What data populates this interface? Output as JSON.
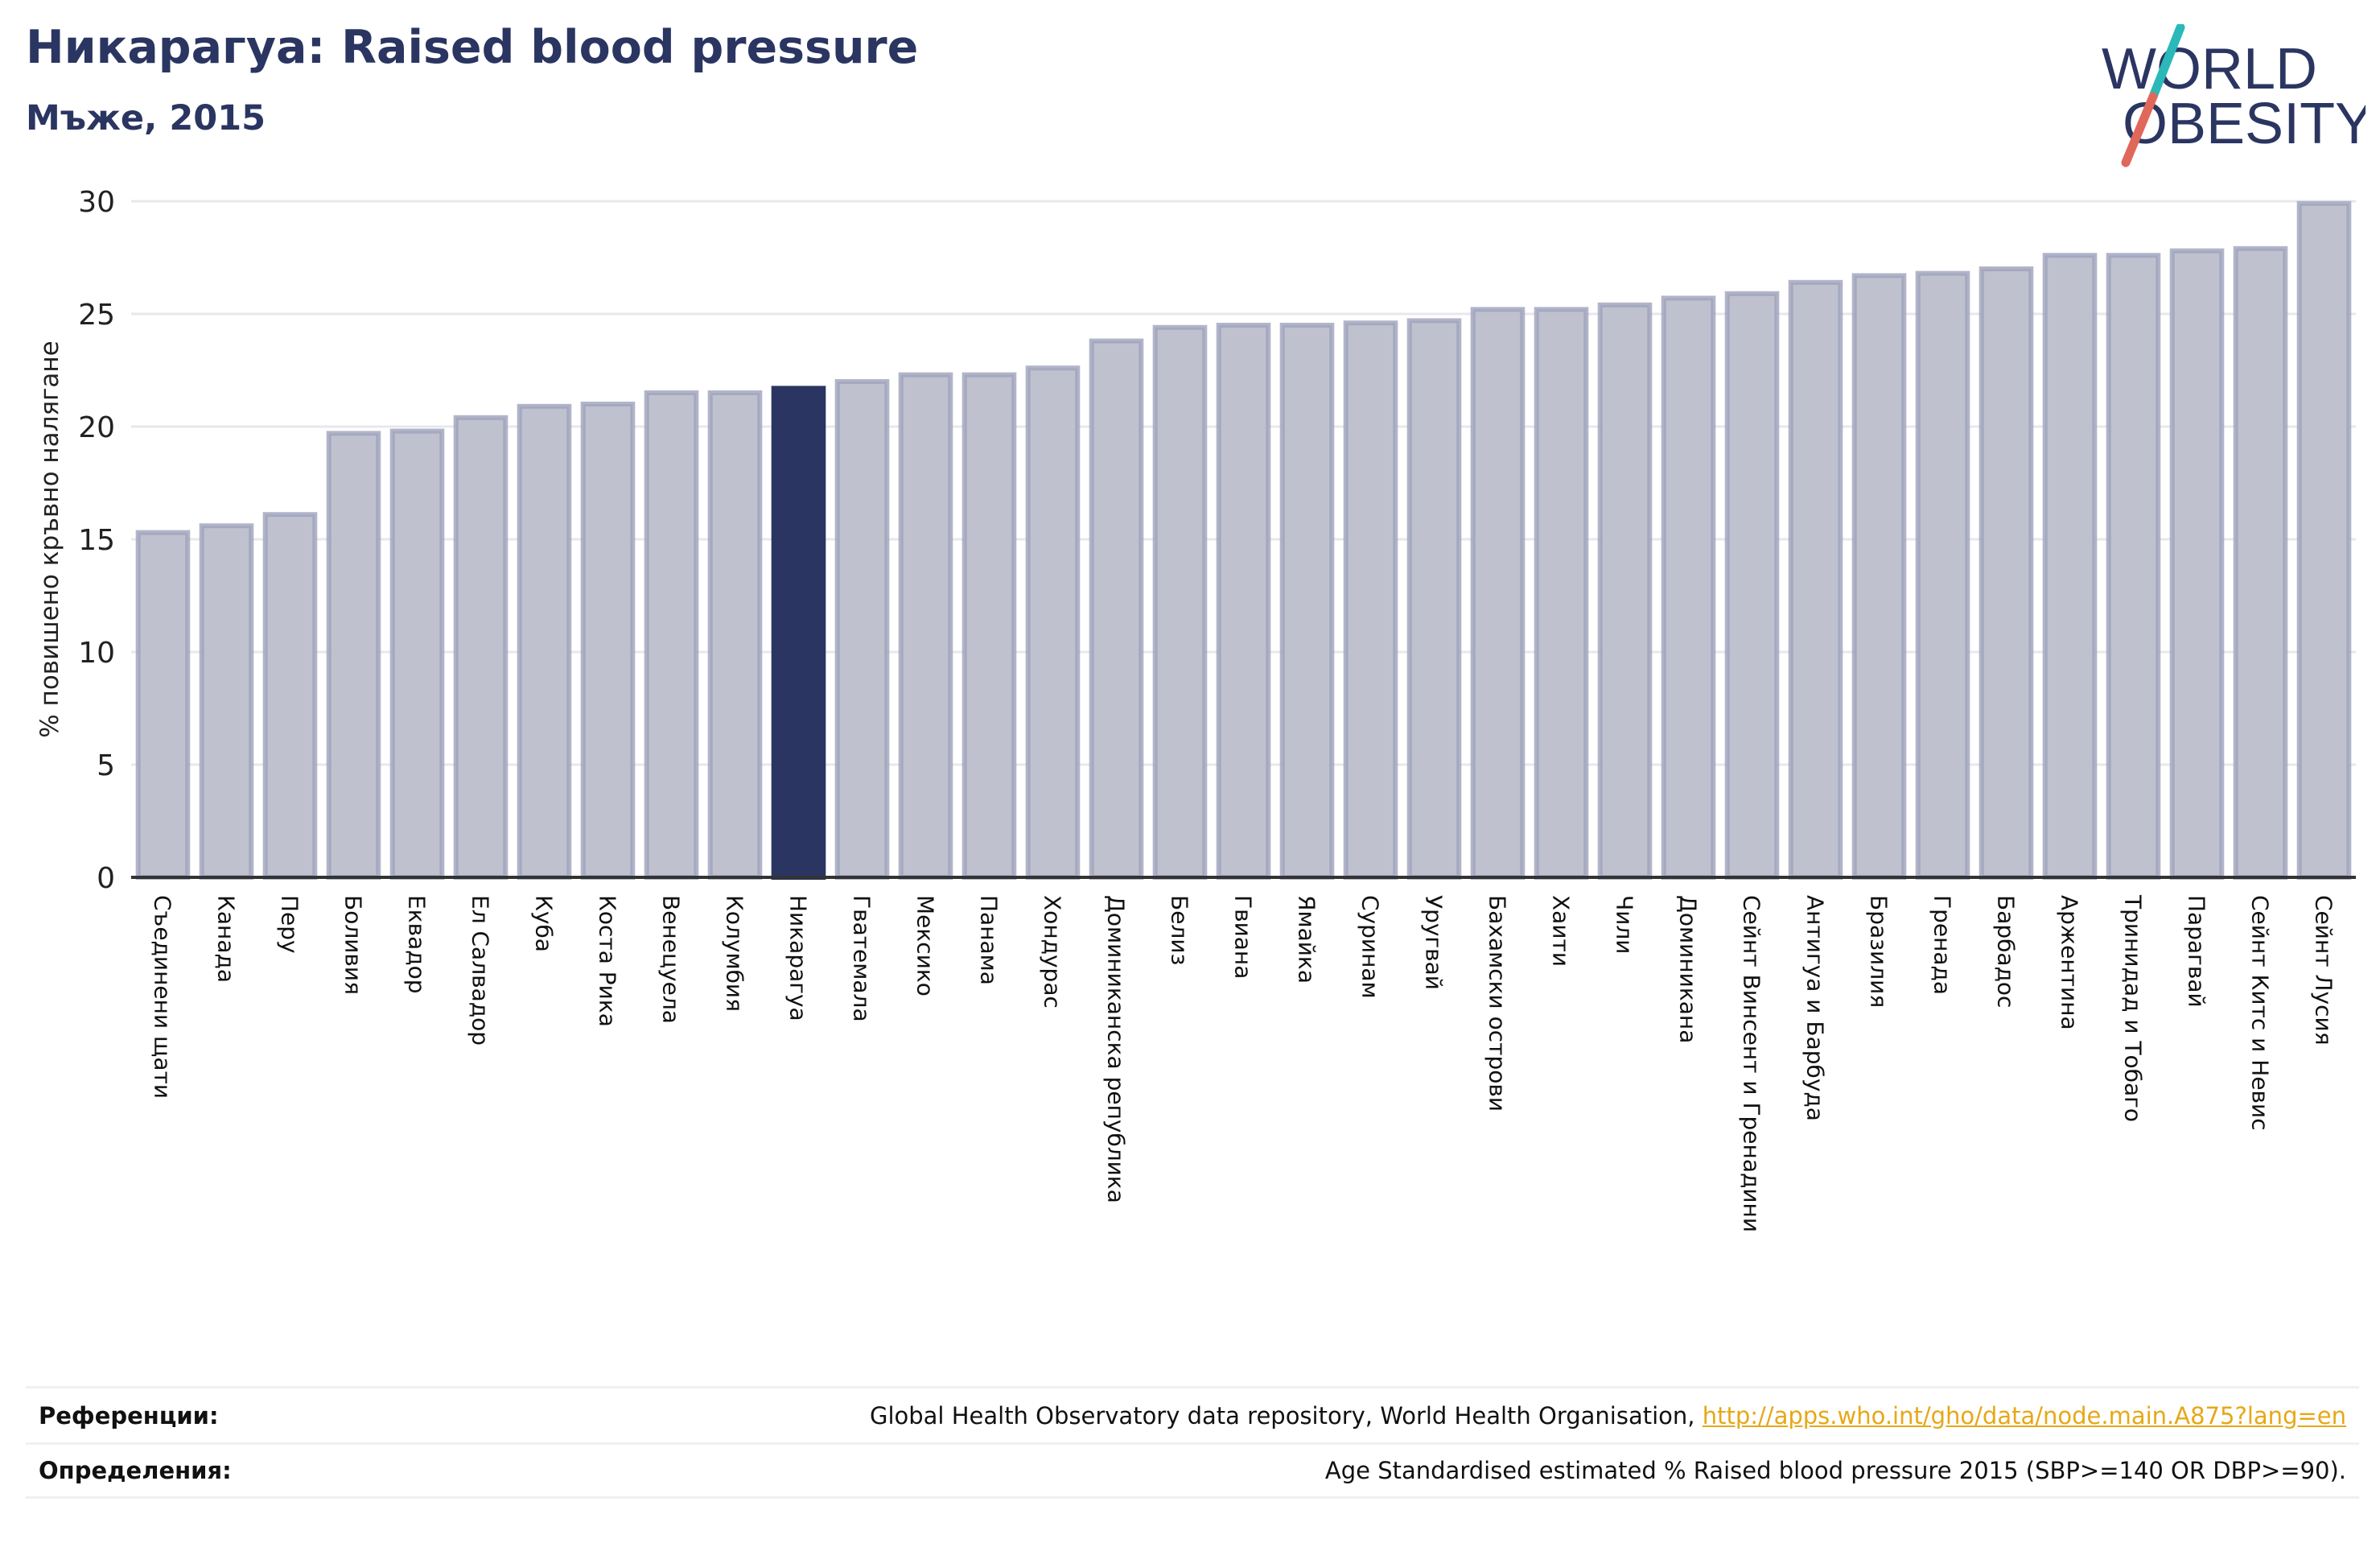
{
  "header": {
    "title": "Никарагуа: Raised blood pressure",
    "subtitle": "Мъже, 2015"
  },
  "logo": {
    "line1": "WORLD",
    "line2": "OBESITY",
    "colors": {
      "text": "#2a3561",
      "slash_top": "#2ab8b8",
      "slash_bottom": "#e0685a"
    }
  },
  "chart_data": {
    "type": "bar",
    "ylabel": "% повишено кръвно налягане",
    "xlabel": "",
    "ylim": [
      0,
      30
    ],
    "yticks": [
      0,
      5,
      10,
      15,
      20,
      25,
      30
    ],
    "grid": true,
    "highlight": "Никарагуа",
    "colors": {
      "bar": "#bfc1cf",
      "bar_edge": "#9fa3bc",
      "highlight": "#2a3561",
      "grid": "#e8e8ec",
      "axis": "#333333"
    },
    "categories": [
      "Съединени щати",
      "Канада",
      "Перу",
      "Боливия",
      "Еквадор",
      "Ел Салвадор",
      "Куба",
      "Коста Рика",
      "Венецуела",
      "Колумбия",
      "Никарагуа",
      "Гватемала",
      "Мексико",
      "Панама",
      "Хондурас",
      "Доминиканска република",
      "Белиз",
      "Гвиана",
      "Ямайка",
      "Суринам",
      "Уругвай",
      "Бахамски острови",
      "Хаити",
      "Чили",
      "Доминикана",
      "Сейнт Винсент и Гренадини",
      "Антигуа и Барбуда",
      "Бразилия",
      "Гренада",
      "Барбадос",
      "Аржентина",
      "Тринидад и Тобаго",
      "Парагвай",
      "Сейнт Китс и Невис",
      "Сейнт Лусия"
    ],
    "values": [
      15.3,
      15.6,
      16.1,
      19.7,
      19.8,
      20.4,
      20.9,
      21.0,
      21.5,
      21.5,
      21.7,
      22.0,
      22.3,
      22.3,
      22.6,
      23.8,
      24.4,
      24.5,
      24.5,
      24.6,
      24.7,
      25.2,
      25.2,
      25.4,
      25.7,
      25.9,
      26.4,
      26.7,
      26.8,
      27.0,
      27.6,
      27.6,
      27.8,
      27.9,
      29.9
    ]
  },
  "footer": {
    "references_label": "Референции:",
    "references_text": "Global Health Observatory data repository, World Health Organisation,",
    "references_link": "http://apps.who.int/gho/data/node.main.A875?lang=en",
    "definitions_label": "Определения:",
    "definitions_text": "Age Standardised estimated % Raised blood pressure 2015 (SBP>=140 OR DBP>=90)."
  }
}
